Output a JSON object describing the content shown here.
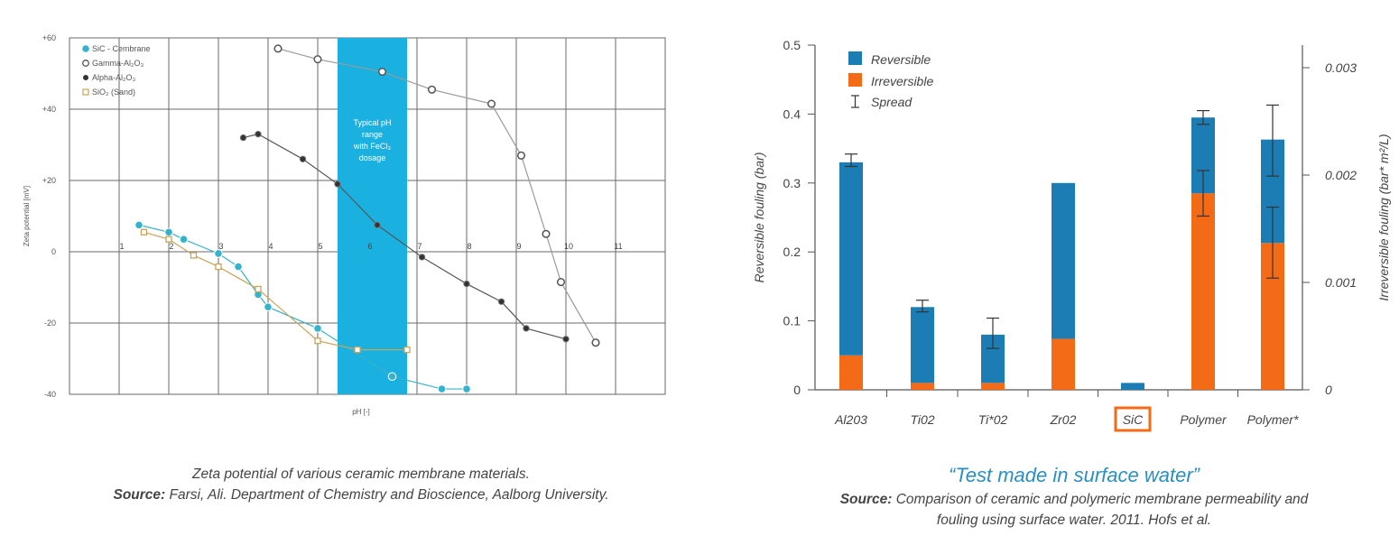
{
  "chart_data": [
    {
      "type": "line",
      "title": "",
      "xlabel": "pH [-]",
      "ylabel": "Zeta potential [mV]",
      "xlim": [
        0,
        12
      ],
      "ylim": [
        -40,
        60
      ],
      "x_ticks": [
        1,
        2,
        3,
        4,
        5,
        6,
        7,
        8,
        9,
        10,
        11
      ],
      "y_tick_labels": [
        {
          "value": 60,
          "label": "+60"
        },
        {
          "value": 40,
          "label": "+40"
        },
        {
          "value": 20,
          "label": "+20"
        },
        {
          "value": 0,
          "label": "0"
        },
        {
          "value": -20,
          "label": "-20"
        },
        {
          "value": -40,
          "label": "-40"
        }
      ],
      "band": {
        "x": [
          5.4,
          6.8
        ],
        "label": [
          "Typical pH",
          "range",
          "with FeCl₃",
          "dosage"
        ],
        "color": "#1ab0e0"
      },
      "legend_position": "top-left",
      "series": [
        {
          "name": "SiC - Cembrane",
          "marker": "circle-filled",
          "color": "#36b3cc",
          "points": [
            [
              1.4,
              7.5
            ],
            [
              2.0,
              5.5
            ],
            [
              2.3,
              3.5
            ],
            [
              3.0,
              -0.5
            ],
            [
              3.4,
              -4.2
            ],
            [
              3.8,
              -12
            ],
            [
              4.0,
              -15.5
            ],
            [
              5.0,
              -21.5
            ],
            [
              6.5,
              -35
            ],
            [
              7.5,
              -38.5
            ],
            [
              8.0,
              -38.5
            ]
          ]
        },
        {
          "name": "Gamma-Al₂O₃",
          "marker": "circle-open",
          "color": "#9a9a9a",
          "points": [
            [
              4.2,
              57
            ],
            [
              5.0,
              54
            ],
            [
              6.3,
              50.5
            ],
            [
              7.3,
              45.5
            ],
            [
              8.5,
              41.5
            ],
            [
              9.1,
              27
            ],
            [
              9.6,
              5
            ],
            [
              9.9,
              -8.5
            ],
            [
              10.6,
              -25.5
            ]
          ]
        },
        {
          "name": "Alpha-Al₂O₃",
          "marker": "circle-dark",
          "color": "#555555",
          "points": [
            [
              3.5,
              32
            ],
            [
              3.8,
              33
            ],
            [
              4.7,
              26
            ],
            [
              5.4,
              19
            ],
            [
              6.2,
              7.5
            ],
            [
              7.1,
              -1.5
            ],
            [
              8.0,
              -9
            ],
            [
              8.7,
              -14
            ],
            [
              9.2,
              -21.5
            ],
            [
              10.0,
              -24.5
            ]
          ]
        },
        {
          "name": "SiO₂ (Sand)",
          "marker": "square-open",
          "color": "#c8a45a",
          "points": [
            [
              1.5,
              5.5
            ],
            [
              2.0,
              3.5
            ],
            [
              2.5,
              -1
            ],
            [
              3.0,
              -4.2
            ],
            [
              3.8,
              -10.5
            ],
            [
              5.0,
              -25
            ],
            [
              5.8,
              -27.5
            ],
            [
              6.8,
              -27.5
            ]
          ]
        }
      ]
    },
    {
      "type": "bar",
      "stacked": true,
      "categories": [
        "Al203",
        "Ti02",
        "Ti*02",
        "Zr02",
        "SiC",
        "Polymer",
        "Polymer*"
      ],
      "highlight_category": "SiC",
      "ylabel": "Reversible fouling (bar)",
      "y2label": "Irreversible fouling (bar* m²/L)",
      "ylim": [
        0,
        0.5
      ],
      "y_ticks": [
        "0",
        "0.1",
        "0.2",
        "0.3",
        "0.4",
        "0.5"
      ],
      "y2_ticks": [
        "0",
        "0.001",
        "0.002",
        "0.003"
      ],
      "legend_position": "top-left",
      "legend": [
        "Reversible",
        "Irreversible",
        "Spread"
      ],
      "series": [
        {
          "name": "Irreversible",
          "color": "#f36a17",
          "values": [
            0.05,
            0.01,
            0.01,
            0.074,
            0.0,
            0.285,
            0.213
          ]
        },
        {
          "name": "Reversible",
          "color": "#1b7db4",
          "values": [
            0.28,
            0.11,
            0.07,
            0.226,
            0.01,
            0.11,
            0.15
          ]
        }
      ],
      "spread": [
        {
          "category": "Al203",
          "low": 0.324,
          "high": 0.342
        },
        {
          "category": "Ti02",
          "low": 0.113,
          "high": 0.13
        },
        {
          "category": "Ti*02",
          "low": 0.06,
          "high": 0.104
        },
        {
          "category": "Polymer",
          "low": 0.385,
          "high": 0.405
        },
        {
          "category": "Polymer",
          "low": 0.252,
          "high": 0.318
        },
        {
          "category": "Polymer*",
          "low": 0.31,
          "high": 0.413
        },
        {
          "category": "Polymer*",
          "low": 0.162,
          "high": 0.265
        }
      ]
    }
  ],
  "captions": {
    "left": {
      "line1": "Zeta potential of various ceramic membrane materials.",
      "source_label": "Source:",
      "source_text": "Farsi, Ali. Department of Chemistry and Bioscience, Aalborg University."
    },
    "right": {
      "quote": "“Test made in surface water”",
      "source_label": "Source:",
      "source_text_1": "Comparison of ceramic and polymeric membrane permeability and",
      "source_text_2": "fouling using surface water. 2011. Hofs et al."
    }
  }
}
